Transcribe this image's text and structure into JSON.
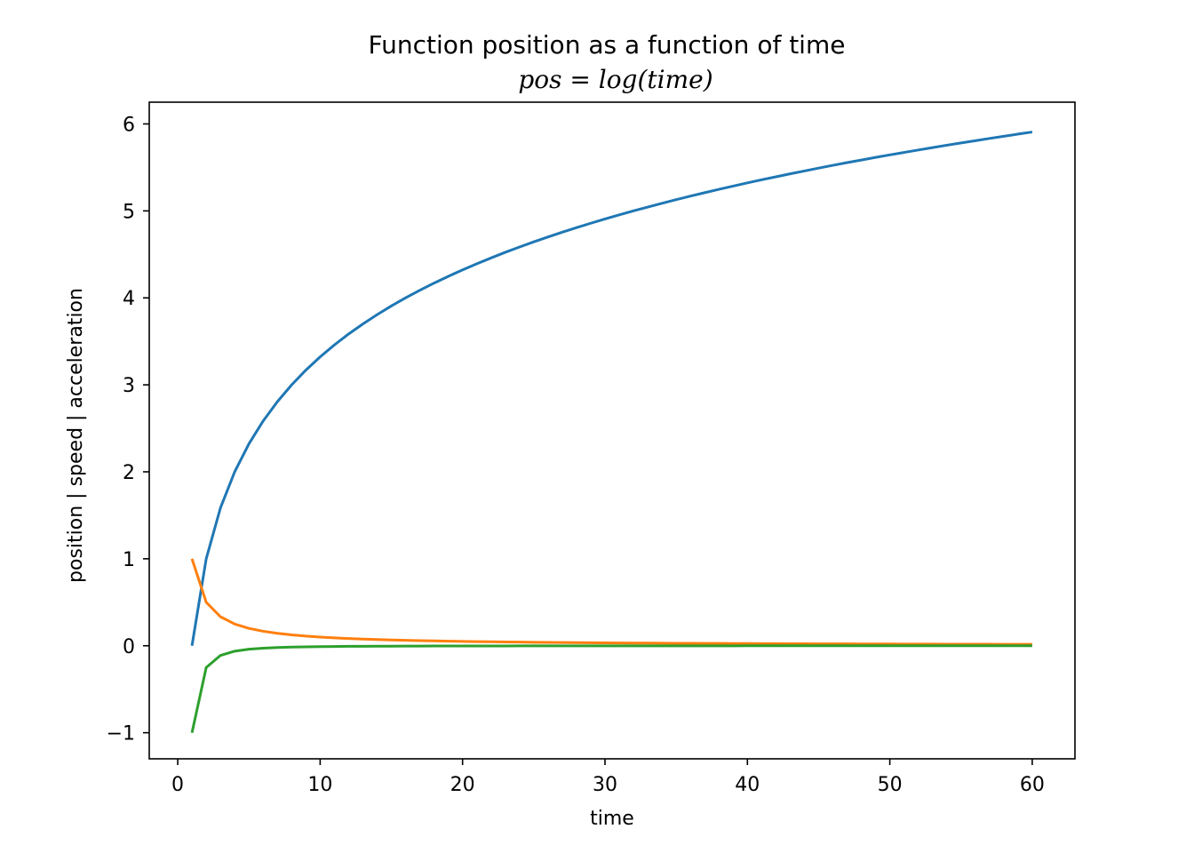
{
  "chart_data": {
    "type": "line",
    "title": "Function position as a function of time",
    "subtitle": "pos = log(time)",
    "xlabel": "time",
    "ylabel": "position | speed | acceleration",
    "xlim": [
      -2,
      63
    ],
    "ylim": [
      -1.3,
      6.25
    ],
    "xticks": [
      0,
      10,
      20,
      30,
      40,
      50,
      60
    ],
    "yticks": [
      -1,
      0,
      1,
      2,
      3,
      4,
      5,
      6
    ],
    "xtick_labels": [
      "0",
      "10",
      "20",
      "30",
      "40",
      "50",
      "60"
    ],
    "ytick_labels": [
      "−1",
      "0",
      "1",
      "2",
      "3",
      "4",
      "5",
      "6"
    ],
    "grid": false,
    "x": [
      1,
      2,
      3,
      4,
      5,
      6,
      7,
      8,
      9,
      10,
      11,
      12,
      13,
      14,
      15,
      16,
      17,
      18,
      19,
      20,
      21,
      22,
      23,
      24,
      25,
      26,
      27,
      28,
      29,
      30,
      31,
      32,
      33,
      34,
      35,
      36,
      37,
      38,
      39,
      40,
      41,
      42,
      43,
      44,
      45,
      46,
      47,
      48,
      49,
      50,
      51,
      52,
      53,
      54,
      55,
      56,
      57,
      58,
      59,
      60
    ],
    "series": [
      {
        "color": "#1f77b4",
        "values": [
          0.0,
          1.0,
          1.585,
          2.0,
          2.322,
          2.585,
          2.807,
          3.0,
          3.17,
          3.322,
          3.459,
          3.585,
          3.7,
          3.807,
          3.907,
          4.0,
          4.087,
          4.17,
          4.248,
          4.322,
          4.392,
          4.459,
          4.524,
          4.585,
          4.644,
          4.7,
          4.755,
          4.807,
          4.858,
          4.907,
          4.954,
          5.0,
          5.044,
          5.087,
          5.129,
          5.17,
          5.209,
          5.248,
          5.285,
          5.322,
          5.358,
          5.392,
          5.426,
          5.459,
          5.492,
          5.524,
          5.555,
          5.585,
          5.615,
          5.644,
          5.672,
          5.7,
          5.728,
          5.755,
          5.781,
          5.807,
          5.833,
          5.858,
          5.883,
          5.907
        ]
      },
      {
        "color": "#ff7f0e",
        "values": [
          1.0,
          0.5,
          0.3333,
          0.25,
          0.2,
          0.1667,
          0.1429,
          0.125,
          0.1111,
          0.1,
          0.0909,
          0.0833,
          0.0769,
          0.0714,
          0.0667,
          0.0625,
          0.0588,
          0.0556,
          0.0526,
          0.05,
          0.0476,
          0.0455,
          0.0435,
          0.0417,
          0.04,
          0.0385,
          0.037,
          0.0357,
          0.0345,
          0.0333,
          0.0323,
          0.0313,
          0.0303,
          0.0294,
          0.0286,
          0.0278,
          0.027,
          0.0263,
          0.0256,
          0.025,
          0.0244,
          0.0238,
          0.0233,
          0.0227,
          0.0222,
          0.0217,
          0.0213,
          0.0208,
          0.0204,
          0.02,
          0.0196,
          0.0192,
          0.0189,
          0.0185,
          0.0182,
          0.0179,
          0.0175,
          0.0172,
          0.0169,
          0.0167
        ]
      },
      {
        "color": "#2ca02c",
        "values": [
          -1.0,
          -0.25,
          -0.1111,
          -0.0625,
          -0.04,
          -0.0278,
          -0.0204,
          -0.0156,
          -0.0123,
          -0.01,
          -0.0083,
          -0.0069,
          -0.0059,
          -0.0051,
          -0.0044,
          -0.0039,
          -0.0035,
          -0.0031,
          -0.0028,
          -0.0025,
          -0.0023,
          -0.0021,
          -0.0019,
          -0.0017,
          -0.0016,
          -0.0015,
          -0.0014,
          -0.0013,
          -0.0012,
          -0.0011,
          -0.001,
          -0.001,
          -0.0009,
          -0.0009,
          -0.0008,
          -0.0008,
          -0.0007,
          -0.0007,
          -0.0007,
          -0.0006,
          -0.0006,
          -0.0006,
          -0.0005,
          -0.0005,
          -0.0005,
          -0.0005,
          -0.0005,
          -0.0004,
          -0.0004,
          -0.0004,
          -0.0004,
          -0.0004,
          -0.0004,
          -0.0003,
          -0.0003,
          -0.0003,
          -0.0003,
          -0.0003,
          -0.0003,
          -0.0003
        ]
      }
    ]
  }
}
